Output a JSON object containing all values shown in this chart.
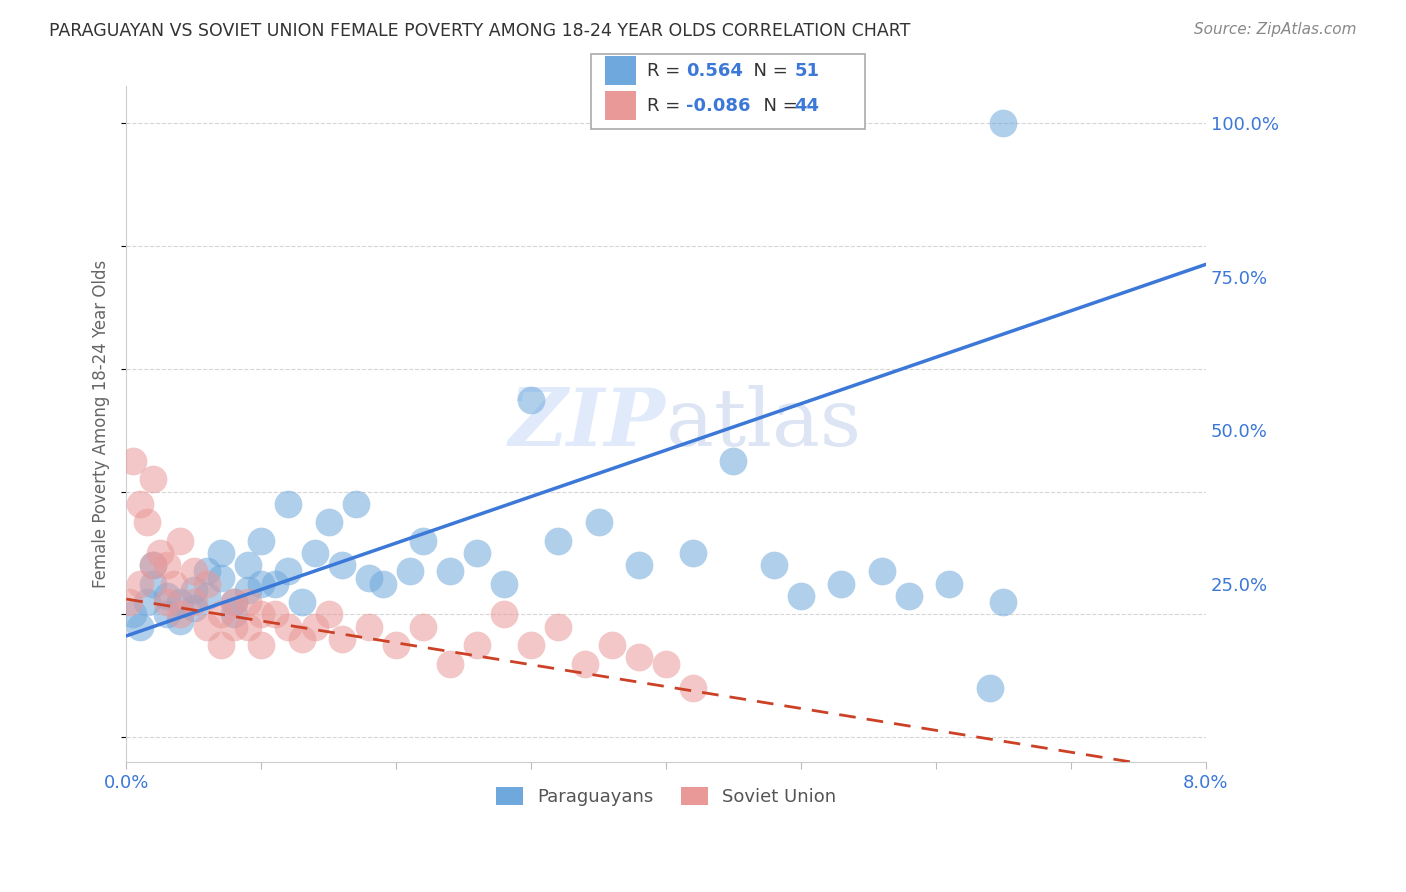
{
  "title": "PARAGUAYAN VS SOVIET UNION FEMALE POVERTY AMONG 18-24 YEAR OLDS CORRELATION CHART",
  "source": "Source: ZipAtlas.com",
  "ylabel": "Female Poverty Among 18-24 Year Olds",
  "ytick_labels": [
    "100.0%",
    "75.0%",
    "50.0%",
    "25.0%"
  ],
  "ytick_values": [
    1.0,
    0.75,
    0.5,
    0.25
  ],
  "xlim": [
    0.0,
    0.08
  ],
  "ylim": [
    -0.04,
    1.06
  ],
  "watermark": "ZIPatlas",
  "blue_color": "#6fa8dc",
  "pink_color": "#ea9999",
  "blue_line_color": "#3c78d8",
  "pink_line_color": "#cc4125",
  "legend_R_blue": "0.564",
  "legend_N_blue": "51",
  "legend_R_pink": "-0.086",
  "legend_N_pink": "44",
  "paraguayan_x": [
    0.0005,
    0.001,
    0.0015,
    0.002,
    0.002,
    0.003,
    0.003,
    0.004,
    0.004,
    0.005,
    0.005,
    0.006,
    0.006,
    0.007,
    0.007,
    0.008,
    0.008,
    0.009,
    0.009,
    0.01,
    0.01,
    0.011,
    0.012,
    0.012,
    0.013,
    0.014,
    0.015,
    0.016,
    0.017,
    0.018,
    0.019,
    0.021,
    0.022,
    0.024,
    0.026,
    0.028,
    0.03,
    0.032,
    0.035,
    0.038,
    0.042,
    0.045,
    0.048,
    0.05,
    0.053,
    0.056,
    0.058,
    0.061,
    0.064,
    0.065,
    0.065
  ],
  "paraguayan_y": [
    0.2,
    0.18,
    0.22,
    0.25,
    0.28,
    0.23,
    0.2,
    0.22,
    0.19,
    0.24,
    0.21,
    0.27,
    0.23,
    0.26,
    0.3,
    0.22,
    0.2,
    0.28,
    0.24,
    0.25,
    0.32,
    0.25,
    0.38,
    0.27,
    0.22,
    0.3,
    0.35,
    0.28,
    0.38,
    0.26,
    0.25,
    0.27,
    0.32,
    0.27,
    0.3,
    0.25,
    0.55,
    0.32,
    0.35,
    0.28,
    0.3,
    0.45,
    0.28,
    0.23,
    0.25,
    0.27,
    0.23,
    0.25,
    0.08,
    0.22,
    1.0
  ],
  "soviet_x": [
    0.0002,
    0.0005,
    0.001,
    0.001,
    0.0015,
    0.002,
    0.002,
    0.0025,
    0.003,
    0.003,
    0.0035,
    0.004,
    0.004,
    0.005,
    0.005,
    0.006,
    0.006,
    0.007,
    0.007,
    0.008,
    0.008,
    0.009,
    0.009,
    0.01,
    0.01,
    0.011,
    0.012,
    0.013,
    0.014,
    0.015,
    0.016,
    0.018,
    0.02,
    0.022,
    0.024,
    0.026,
    0.028,
    0.03,
    0.032,
    0.034,
    0.036,
    0.038,
    0.04,
    0.042
  ],
  "soviet_y": [
    0.22,
    0.45,
    0.38,
    0.25,
    0.35,
    0.28,
    0.42,
    0.3,
    0.22,
    0.28,
    0.25,
    0.32,
    0.2,
    0.27,
    0.22,
    0.18,
    0.25,
    0.2,
    0.15,
    0.22,
    0.18,
    0.18,
    0.22,
    0.2,
    0.15,
    0.2,
    0.18,
    0.16,
    0.18,
    0.2,
    0.16,
    0.18,
    0.15,
    0.18,
    0.12,
    0.15,
    0.2,
    0.15,
    0.18,
    0.12,
    0.15,
    0.13,
    0.12,
    0.08
  ],
  "blue_line_x0": 0.0,
  "blue_line_y0": 0.165,
  "blue_line_x1": 0.08,
  "blue_line_y1": 0.77,
  "pink_line_x0": 0.0,
  "pink_line_y0": 0.225,
  "pink_line_x1": 0.08,
  "pink_line_y1": -0.06
}
